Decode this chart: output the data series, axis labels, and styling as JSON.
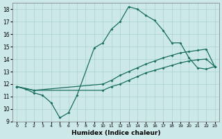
{
  "xlabel": "Humidex (Indice chaleur)",
  "bg_color": "#cce8e8",
  "grid_color": "#aad4cc",
  "line_color": "#1a6e60",
  "xlim": [
    -0.5,
    23.5
  ],
  "ylim": [
    9,
    18.5
  ],
  "xticks": [
    0,
    1,
    2,
    3,
    4,
    5,
    6,
    7,
    8,
    9,
    10,
    11,
    12,
    13,
    14,
    15,
    16,
    17,
    18,
    19,
    20,
    21,
    22,
    23
  ],
  "yticks": [
    9,
    10,
    11,
    12,
    13,
    14,
    15,
    16,
    17,
    18
  ],
  "line_peaked_x": [
    0,
    1,
    2,
    3,
    4,
    5,
    6,
    7,
    9,
    10,
    11,
    12,
    13,
    14,
    15,
    16,
    17,
    18,
    19,
    20,
    21,
    22,
    23
  ],
  "line_peaked_y": [
    11.8,
    11.6,
    11.3,
    11.1,
    10.5,
    9.3,
    9.7,
    11.1,
    14.9,
    15.3,
    16.4,
    17.0,
    18.2,
    18.0,
    17.5,
    17.1,
    16.3,
    15.3,
    15.3,
    14.1,
    13.3,
    13.2,
    13.4
  ],
  "line_upper_x": [
    0,
    2,
    10,
    11,
    12,
    13,
    14,
    15,
    16,
    17,
    18,
    19,
    20,
    21,
    22,
    23
  ],
  "line_upper_y": [
    11.8,
    11.5,
    12.0,
    12.3,
    12.7,
    13.0,
    13.3,
    13.6,
    13.85,
    14.1,
    14.3,
    14.5,
    14.6,
    14.7,
    14.8,
    13.4
  ],
  "line_lower_x": [
    0,
    2,
    10,
    11,
    12,
    13,
    14,
    15,
    16,
    17,
    18,
    19,
    20,
    21,
    22,
    23
  ],
  "line_lower_y": [
    11.8,
    11.5,
    11.5,
    11.8,
    12.0,
    12.3,
    12.6,
    12.9,
    13.1,
    13.3,
    13.5,
    13.7,
    13.85,
    13.95,
    14.0,
    13.4
  ]
}
